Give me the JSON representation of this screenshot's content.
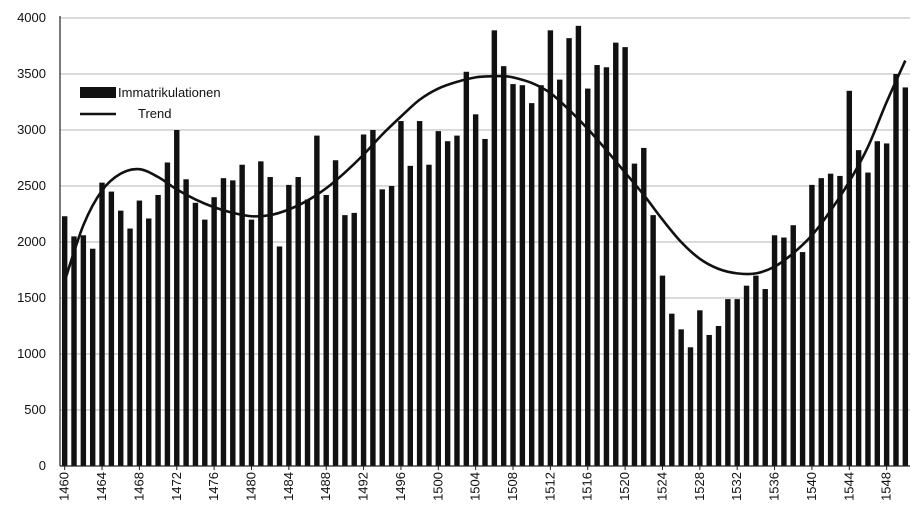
{
  "chart_data": {
    "type": "bar",
    "title": "",
    "xlabel": "",
    "ylabel": "",
    "ylim": [
      0,
      4000
    ],
    "yticks": [
      0,
      500,
      1000,
      1500,
      2000,
      2500,
      3000,
      3500,
      4000
    ],
    "x_start": 1460,
    "x_end": 1550,
    "x_tick_step": 4,
    "grid": true,
    "legend_position": "top-left",
    "bar_color": "#111111",
    "trend_color": "#111111",
    "legend": {
      "bar_label": "Immatrikulationen",
      "line_label": "Trend"
    },
    "series": [
      {
        "name": "Immatrikulationen",
        "x": [
          1460,
          1461,
          1462,
          1463,
          1464,
          1465,
          1466,
          1467,
          1468,
          1469,
          1470,
          1471,
          1472,
          1473,
          1474,
          1475,
          1476,
          1477,
          1478,
          1479,
          1480,
          1481,
          1482,
          1483,
          1484,
          1485,
          1486,
          1487,
          1488,
          1489,
          1490,
          1491,
          1492,
          1493,
          1494,
          1495,
          1496,
          1497,
          1498,
          1499,
          1500,
          1501,
          1502,
          1503,
          1504,
          1505,
          1506,
          1507,
          1508,
          1509,
          1510,
          1511,
          1512,
          1513,
          1514,
          1515,
          1516,
          1517,
          1518,
          1519,
          1520,
          1521,
          1522,
          1523,
          1524,
          1525,
          1526,
          1527,
          1528,
          1529,
          1530,
          1531,
          1532,
          1533,
          1534,
          1535,
          1536,
          1537,
          1538,
          1539,
          1540,
          1541,
          1542,
          1543,
          1544,
          1545,
          1546,
          1547,
          1548,
          1549,
          1550
        ],
        "values": [
          2230,
          2050,
          2060,
          1940,
          2530,
          2450,
          2280,
          2120,
          2370,
          2210,
          2420,
          2710,
          3000,
          2560,
          2350,
          2200,
          2400,
          2570,
          2550,
          2690,
          2200,
          2720,
          2580,
          1960,
          2510,
          2580,
          2380,
          2950,
          2420,
          2730,
          2240,
          2260,
          2960,
          3000,
          2470,
          2500,
          3080,
          2680,
          3080,
          2690,
          2990,
          2900,
          2950,
          3520,
          3140,
          2920,
          3890,
          3570,
          3410,
          3400,
          3240,
          3400,
          3890,
          3450,
          3820,
          3930,
          3370,
          3580,
          3560,
          3780,
          3740,
          2700,
          2840,
          2240,
          1700,
          1360,
          1220,
          1060,
          1390,
          1170,
          1250,
          1490,
          1490,
          1610,
          1700,
          1580,
          2060,
          2040,
          2150,
          1910,
          2510,
          2570,
          2610,
          2590,
          3350,
          2820,
          2620,
          2900,
          2880,
          3500,
          3380
        ]
      },
      {
        "name": "Trend",
        "x": [
          1460,
          1462,
          1464,
          1466,
          1468,
          1470,
          1472,
          1474,
          1476,
          1478,
          1480,
          1482,
          1484,
          1486,
          1488,
          1490,
          1492,
          1494,
          1496,
          1498,
          1500,
          1502,
          1504,
          1506,
          1507,
          1508,
          1510,
          1512,
          1514,
          1516,
          1518,
          1520,
          1522,
          1524,
          1526,
          1528,
          1530,
          1532,
          1534,
          1536,
          1538,
          1540,
          1542,
          1544,
          1546,
          1548,
          1550
        ],
        "values": [
          1650,
          2150,
          2460,
          2610,
          2650,
          2580,
          2470,
          2380,
          2310,
          2260,
          2230,
          2240,
          2290,
          2370,
          2480,
          2620,
          2780,
          2960,
          3120,
          3270,
          3370,
          3430,
          3470,
          3480,
          3480,
          3470,
          3420,
          3330,
          3180,
          3010,
          2820,
          2620,
          2420,
          2200,
          2000,
          1850,
          1760,
          1720,
          1720,
          1780,
          1900,
          2060,
          2280,
          2540,
          2850,
          3250,
          3620
        ]
      }
    ]
  }
}
